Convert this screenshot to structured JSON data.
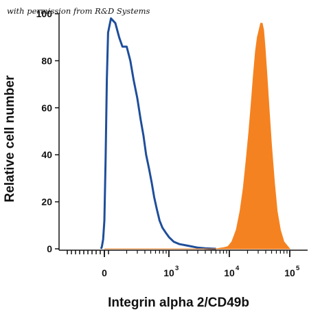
{
  "watermark": "with permission from R&D Systems",
  "chart_data": {
    "type": "area",
    "xlabel": "Integrin alpha 2/CD49b",
    "ylabel": "Relative cell number",
    "xscale": "biexponential",
    "xlim": [
      -1000,
      160000
    ],
    "ylim": [
      0,
      100
    ],
    "yticks": [
      0,
      20,
      40,
      60,
      80,
      100
    ],
    "xticks": [
      {
        "value": 0,
        "base": "0",
        "exp": ""
      },
      {
        "value": 1000,
        "base": "10",
        "exp": "3"
      },
      {
        "value": 10000,
        "base": "10",
        "exp": "4"
      },
      {
        "value": 100000,
        "base": "10",
        "exp": "5"
      }
    ],
    "grid": false,
    "legend": "none",
    "series": [
      {
        "style": "outline",
        "color": "#1f4e9a",
        "x": [
          -80,
          -60,
          -30,
          0,
          30,
          60,
          90,
          110,
          130,
          150,
          170,
          200,
          230,
          260,
          300,
          340,
          380,
          420,
          470,
          520,
          570,
          630,
          700,
          780,
          880,
          1000,
          1200,
          1500,
          1900,
          2400,
          3000,
          4000,
          6000
        ],
        "y": [
          0,
          1,
          4,
          12,
          38,
          72,
          92,
          98,
          96,
          90,
          86,
          86,
          80,
          72,
          64,
          55,
          48,
          40,
          34,
          28,
          22,
          17,
          12,
          9,
          7,
          5,
          3,
          2,
          1.5,
          1,
          0.5,
          0.2,
          0
        ]
      },
      {
        "style": "filled",
        "color": "#f58220",
        "x": [
          0,
          6000,
          8000,
          9500,
          11000,
          13000,
          15000,
          17000,
          19000,
          21000,
          23000,
          25000,
          27000,
          29000,
          31000,
          33000,
          35000,
          37000,
          39000,
          42000,
          46000,
          50000,
          56000,
          62000,
          70000,
          80000,
          100000
        ],
        "y": [
          0,
          0,
          0.5,
          1,
          3,
          8,
          16,
          26,
          38,
          50,
          62,
          74,
          84,
          90,
          93,
          96,
          96,
          93,
          86,
          74,
          58,
          44,
          28,
          16,
          8,
          3,
          0
        ]
      }
    ]
  }
}
